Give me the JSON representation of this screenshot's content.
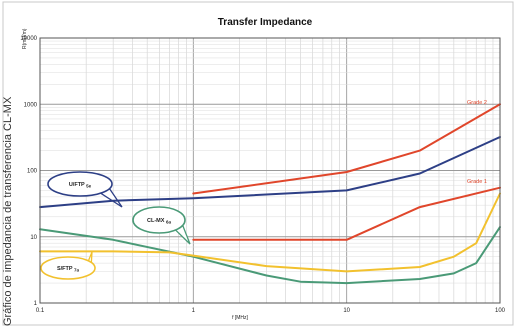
{
  "side_caption": "Gráfico de impedancia de transferencia CL-MX",
  "chart_data": {
    "type": "line",
    "title": "Transfer Impedance",
    "xlabel": "f [MHz]",
    "ylabel": "R(mΩ/m)",
    "x_scale": "log",
    "y_scale": "log",
    "xlim": [
      0.1,
      100
    ],
    "ylim": [
      1,
      10000
    ],
    "x_ticks": [
      "0.1",
      "1",
      "10",
      "100"
    ],
    "y_ticks": [
      "1",
      "10",
      "100",
      "1000",
      "10000"
    ],
    "grid": true,
    "series": [
      {
        "name": "Grade 2",
        "color": "#e0462b",
        "x": [
          1,
          10,
          30,
          100
        ],
        "y": [
          45,
          95,
          200,
          1000
        ]
      },
      {
        "name": "Grade 1",
        "color": "#e0462b",
        "x": [
          1,
          10,
          30,
          100
        ],
        "y": [
          9,
          9,
          28,
          55
        ]
      },
      {
        "name": "U/FTP",
        "sub": "5e",
        "color": "#2d3f86",
        "x": [
          0.1,
          0.3,
          1,
          10,
          30,
          100
        ],
        "y": [
          28,
          35,
          38,
          50,
          90,
          320
        ]
      },
      {
        "name": "CL-MX",
        "sub": "6a",
        "color": "#4a9a77",
        "x": [
          0.1,
          0.3,
          1,
          3,
          5,
          10,
          30,
          50,
          70,
          100
        ],
        "y": [
          13,
          9,
          5,
          2.6,
          2.1,
          2,
          2.3,
          2.8,
          4,
          14
        ]
      },
      {
        "name": "S/FTP",
        "sub": "7a",
        "color": "#f2c12e",
        "x": [
          0.1,
          0.3,
          0.7,
          1,
          3,
          10,
          30,
          50,
          70,
          100
        ],
        "y": [
          6,
          6,
          5.8,
          5.2,
          3.6,
          3,
          3.5,
          5,
          8,
          45
        ]
      }
    ],
    "annotations": [
      {
        "text": "Grade 2",
        "color": "#e0462b",
        "type": "label"
      },
      {
        "text": "Grade 1",
        "color": "#e0462b",
        "type": "label"
      },
      {
        "text": "U/FTP",
        "sub": "5e",
        "color": "#2d3f86",
        "type": "callout"
      },
      {
        "text": "CL-MX",
        "sub": "6a",
        "color": "#4a9a77",
        "type": "callout"
      },
      {
        "text": "S/FTP",
        "sub": "7a",
        "color": "#f2c12e",
        "type": "callout"
      }
    ]
  }
}
